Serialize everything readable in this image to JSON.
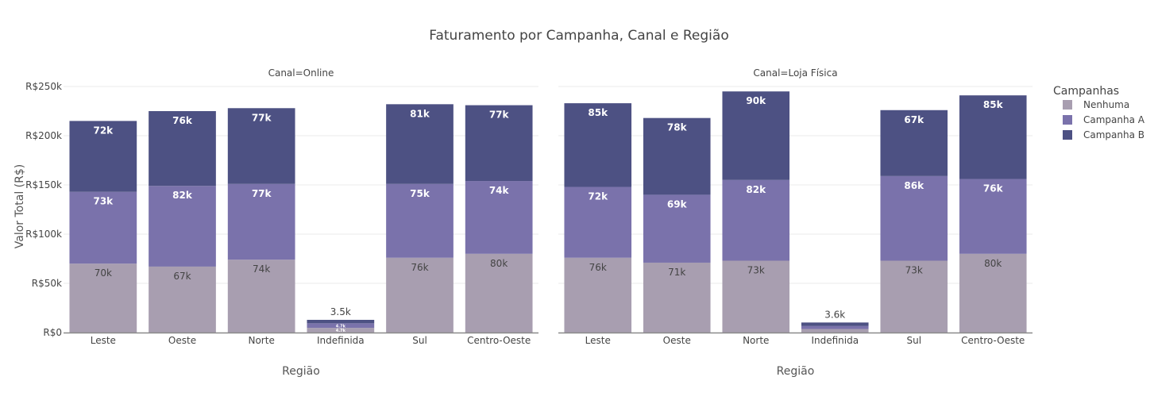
{
  "chart_data": {
    "type": "bar",
    "title": "Faturamento por Campanha, Canal e Região",
    "ylabel": "Valor Total (R$)",
    "xlabel": "Região",
    "ylim": [
      0,
      250000
    ],
    "yticks": [
      {
        "value": 0,
        "label": "R$0"
      },
      {
        "value": 50000,
        "label": "R$50k"
      },
      {
        "value": 100000,
        "label": "R$100k"
      },
      {
        "value": 150000,
        "label": "R$150k"
      },
      {
        "value": 200000,
        "label": "R$200k"
      },
      {
        "value": 250000,
        "label": "R$250k"
      }
    ],
    "categories": [
      "Leste",
      "Oeste",
      "Norte",
      "Indefinida",
      "Sul",
      "Centro-Oeste"
    ],
    "legend": {
      "title": "Campanhas",
      "position": "right",
      "items": [
        {
          "name": "Nenhuma",
          "color": "#a89eb0"
        },
        {
          "name": "Campanha A",
          "color": "#7a72ab"
        },
        {
          "name": "Campanha B",
          "color": "#4d5183"
        }
      ]
    },
    "panels": [
      {
        "subtitle": "Canal=Online",
        "series": [
          {
            "name": "Nenhuma",
            "color": "#a89eb0",
            "label_color": "#444444",
            "values": [
              70000,
              67000,
              74000,
              4700,
              76000,
              80000
            ],
            "labels": [
              "70k",
              "67k",
              "74k",
              "4.7k",
              "76k",
              "80k"
            ]
          },
          {
            "name": "Campanha A",
            "color": "#7a72ab",
            "label_color": "#ffffff",
            "values": [
              73000,
              82000,
              77000,
              4700,
              75000,
              74000
            ],
            "labels": [
              "73k",
              "82k",
              "77k",
              "4.7k",
              "75k",
              "74k"
            ]
          },
          {
            "name": "Campanha B",
            "color": "#4d5183",
            "label_color": "#ffffff",
            "values": [
              72000,
              76000,
              77000,
              3500,
              81000,
              77000
            ],
            "labels": [
              "72k",
              "76k",
              "77k",
              "3.5k",
              "81k",
              "77k"
            ]
          }
        ]
      },
      {
        "subtitle": "Canal=Loja Física",
        "series": [
          {
            "name": "Nenhuma",
            "color": "#a89eb0",
            "label_color": "#444444",
            "values": [
              76000,
              71000,
              73000,
              3600,
              73000,
              80000
            ],
            "labels": [
              "76k",
              "71k",
              "73k",
              "",
              "73k",
              "80k"
            ]
          },
          {
            "name": "Campanha A",
            "color": "#7a72ab",
            "label_color": "#ffffff",
            "values": [
              72000,
              69000,
              82000,
              3000,
              86000,
              76000
            ],
            "labels": [
              "72k",
              "69k",
              "82k",
              "",
              "86k",
              "76k"
            ]
          },
          {
            "name": "Campanha B",
            "color": "#4d5183",
            "label_color": "#ffffff",
            "values": [
              85000,
              78000,
              90000,
              3600,
              67000,
              85000
            ],
            "labels": [
              "85k",
              "78k",
              "90k",
              "3.6k",
              "67k",
              "85k"
            ]
          }
        ]
      }
    ]
  }
}
